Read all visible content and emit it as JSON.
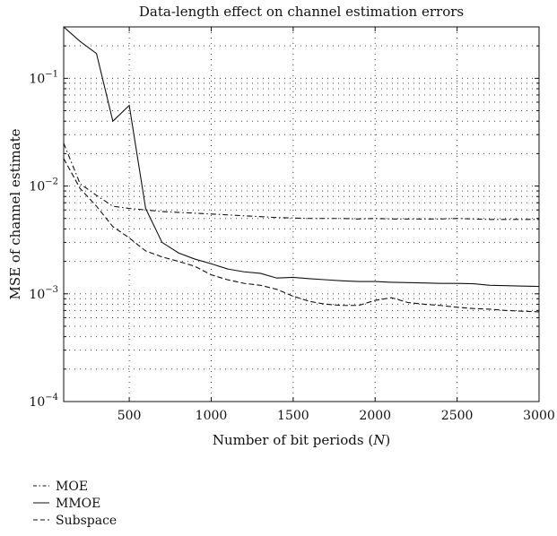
{
  "chart_data": {
    "type": "line",
    "title": "Data-length effect on channel estimation errors",
    "xlabel": "Number of bit periods",
    "xlabel_symbol": "N",
    "ylabel": "MSE of channel estimate",
    "xlim": [
      100,
      3000
    ],
    "ylim": [
      0.0001,
      0.3
    ],
    "yscale": "log",
    "grid": true,
    "legend_position": "bottom-left, below plot",
    "x_ticks": [
      500,
      1000,
      1500,
      2000,
      2500,
      3000
    ],
    "y_ticks": [
      {
        "value": 0.1,
        "base": "10",
        "exp": "−1"
      },
      {
        "value": 0.01,
        "base": "10",
        "exp": "−2"
      },
      {
        "value": 0.001,
        "base": "10",
        "exp": "−3"
      },
      {
        "value": 0.0001,
        "base": "10",
        "exp": "−4"
      }
    ],
    "x": [
      100,
      200,
      300,
      400,
      500,
      600,
      700,
      800,
      900,
      1000,
      1100,
      1200,
      1300,
      1400,
      1500,
      1600,
      1700,
      1800,
      1900,
      2000,
      2100,
      2200,
      2300,
      2400,
      2500,
      2600,
      2700,
      2800,
      2900,
      3000
    ],
    "series": [
      {
        "name": "MOE",
        "style": "dash-dot",
        "values": [
          0.025,
          0.0105,
          0.0082,
          0.0065,
          0.0062,
          0.006,
          0.0058,
          0.0057,
          0.0056,
          0.0055,
          0.0054,
          0.0053,
          0.0052,
          0.0051,
          0.00505,
          0.005,
          0.005,
          0.005,
          0.00495,
          0.005,
          0.00495,
          0.00495,
          0.00495,
          0.00495,
          0.005,
          0.00495,
          0.0049,
          0.0049,
          0.0049,
          0.0049
        ]
      },
      {
        "name": "MMOE",
        "style": "solid",
        "values": [
          0.3,
          0.22,
          0.17,
          0.04,
          0.056,
          0.0062,
          0.003,
          0.0024,
          0.0021,
          0.0019,
          0.0017,
          0.0016,
          0.00155,
          0.0014,
          0.00142,
          0.00138,
          0.00135,
          0.00132,
          0.0013,
          0.0013,
          0.00128,
          0.00127,
          0.00126,
          0.00125,
          0.00125,
          0.00124,
          0.0012,
          0.00119,
          0.00118,
          0.00117
        ]
      },
      {
        "name": "Subspace",
        "style": "dashed",
        "values": [
          0.018,
          0.0095,
          0.0065,
          0.0042,
          0.0033,
          0.0025,
          0.0022,
          0.002,
          0.0018,
          0.0015,
          0.00135,
          0.00125,
          0.0012,
          0.0011,
          0.00095,
          0.00085,
          0.0008,
          0.00078,
          0.00078,
          0.00087,
          0.00092,
          0.00083,
          0.0008,
          0.00078,
          0.00075,
          0.00073,
          0.00072,
          0.0007,
          0.00069,
          0.00068
        ]
      }
    ]
  }
}
